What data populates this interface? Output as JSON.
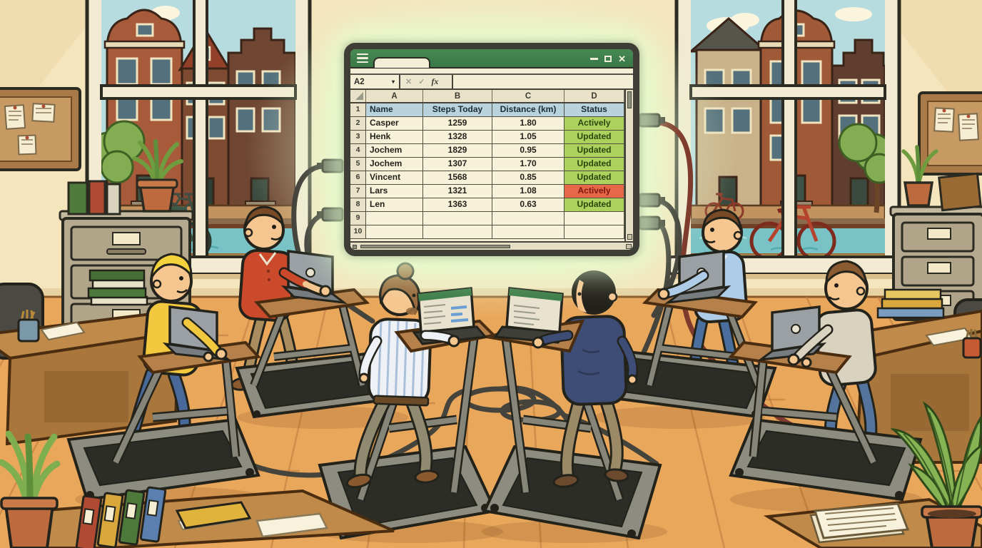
{
  "scene": {
    "description": "Cartoon office: six men walk on treadmill desks with laptops wired to a large glowing wall spreadsheet; Amsterdam canal houses, bicycles and a canal are visible through two windows.",
    "palette": {
      "wall": "#f5e5bd",
      "floor": "#e9a75c",
      "sky": "#b7dce0",
      "water": "#79c2c6",
      "glow": "#deffcd",
      "wood_desk": "#c08b4a",
      "treadmill_gray": "#8c8c80",
      "cable": "#44443c",
      "cable_red": "#7e3a2c"
    },
    "people": [
      {
        "position": "far-left",
        "facing": "right",
        "shirt": "#f2c93e",
        "pants": "#49699b",
        "hair": "#f3d23e",
        "shoes": "#e8b83a"
      },
      {
        "position": "left",
        "facing": "right",
        "shirt": "#cb4a2c",
        "pants": "#a98d5e",
        "hair": "#7a4a26",
        "shoes": "#8a5a2e"
      },
      {
        "position": "center-left",
        "facing": "away",
        "shirt": "#eef2f6",
        "pants": "#8f8a70",
        "hair": "#9a6b3f",
        "shoes": "#8a5a2e"
      },
      {
        "position": "center-right",
        "facing": "away",
        "shirt": "#3e4d76",
        "pants": "#9c8a66",
        "hair": "#23201b",
        "shoes": "#6b4a2e"
      },
      {
        "position": "right",
        "facing": "left",
        "shirt": "#aecbe8",
        "pants": "#4a6f9e",
        "hair": "#7a4a26",
        "shoes": "#8a5a2e"
      },
      {
        "position": "far-right",
        "facing": "left",
        "shirt": "#d8d2bf",
        "pants": "#54749e",
        "hair": "#8a5a30",
        "shoes": "#8a5a2e"
      }
    ]
  },
  "spreadsheet": {
    "name_box": "A2",
    "name_box_caret": "▾",
    "formula_icons": {
      "cancel": "✕",
      "enter": "✓",
      "fx": "fx"
    },
    "window_close": "✕",
    "column_letters": [
      "A",
      "B",
      "C",
      "D"
    ],
    "table_headers": [
      "Name",
      "Steps Today",
      "Distance (km)",
      "Status"
    ],
    "grid_rows": [
      {
        "num": "1",
        "type": "header"
      },
      {
        "num": "2",
        "type": "data",
        "name": "Casper",
        "steps": "1259",
        "distance": "1.80",
        "status": "Actively",
        "status_style": "green"
      },
      {
        "num": "3",
        "type": "data",
        "name": "Henk",
        "steps": "1328",
        "distance": "1.05",
        "status": "Updated",
        "status_style": "green"
      },
      {
        "num": "4",
        "type": "data",
        "name": "Jochem",
        "steps": "1829",
        "distance": "0.95",
        "status": "Updated",
        "status_style": "green"
      },
      {
        "num": "5",
        "type": "data",
        "name": "Jochem",
        "steps": "1307",
        "distance": "1.70",
        "status": "Updated",
        "status_style": "green"
      },
      {
        "num": "6",
        "type": "data",
        "name": "Vincent",
        "steps": "1568",
        "distance": "0.85",
        "status": "Updated",
        "status_style": "green"
      },
      {
        "num": "7",
        "type": "data",
        "name": "Lars",
        "steps": "1321",
        "distance": "1.08",
        "status": "Actively",
        "status_style": "red"
      },
      {
        "num": "8",
        "type": "data",
        "name": "Len",
        "steps": "1363",
        "distance": "0.63",
        "status": "Updated",
        "status_style": "green"
      },
      {
        "num": "9",
        "type": "empty"
      },
      {
        "num": "10",
        "type": "empty"
      }
    ],
    "colors": {
      "titlebar_green": "#3d7d4a",
      "monitor_frame": "#3e3e36",
      "sheet_bg": "#f4eed7",
      "grid_line": "#50503f",
      "column_header_bg": "#e9e2c8",
      "header_row_bg": "#b9d3de",
      "status_green_bg": "#acd15d",
      "status_red_bg": "#e7674a",
      "status_red_text": "#7c150a"
    }
  }
}
